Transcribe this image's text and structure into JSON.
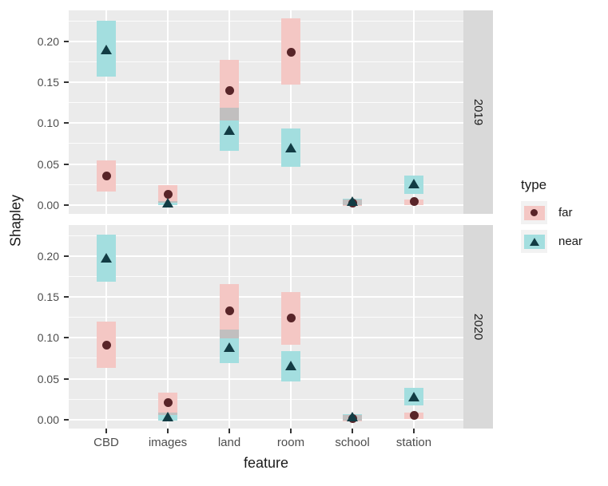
{
  "chart_data": {
    "type": "crossbar",
    "title": "",
    "xlabel": "feature",
    "ylabel": "Shapley",
    "categories": [
      "CBD",
      "images",
      "land",
      "room",
      "school",
      "station"
    ],
    "ylim": [
      -0.011,
      0.238
    ],
    "yticks": [
      0.0,
      0.05,
      0.1,
      0.15,
      0.2
    ],
    "ytick_labels": [
      "0.00",
      "0.05",
      "0.10",
      "0.15",
      "0.20"
    ],
    "yticks_minor": [
      0.025,
      0.075,
      0.125,
      0.175,
      0.225
    ],
    "grid": "white major and minor horizontal lines plus major vertical lines on gray panels",
    "legend": {
      "title": "type",
      "position": "right",
      "entries": [
        {
          "label": "far",
          "shape": "circle"
        },
        {
          "label": "near",
          "shape": "triangle"
        }
      ]
    },
    "facets": [
      {
        "label": "2019",
        "series": [
          {
            "name": "far",
            "shape": "circle",
            "point": [
              0.035,
              0.013,
              0.14,
              0.187,
              0.002,
              0.004
            ],
            "lower": [
              0.016,
              0.003,
              0.103,
              0.147,
              -0.001,
              0.0
            ],
            "upper": [
              0.054,
              0.024,
              0.177,
              0.228,
              0.007,
              0.007
            ]
          },
          {
            "name": "near",
            "shape": "triangle",
            "point": [
              0.19,
              0.003,
              0.092,
              0.07,
              0.005,
              0.026
            ],
            "lower": [
              0.157,
              0.0,
              0.066,
              0.047,
              0.0,
              0.013
            ],
            "upper": [
              0.225,
              0.005,
              0.119,
              0.093,
              0.008,
              0.036
            ]
          }
        ]
      },
      {
        "label": "2020",
        "series": [
          {
            "name": "far",
            "shape": "circle",
            "point": [
              0.091,
              0.021,
              0.133,
              0.124,
              0.001,
              0.005
            ],
            "lower": [
              0.063,
              0.006,
              0.099,
              0.092,
              -0.002,
              0.001
            ],
            "upper": [
              0.12,
              0.033,
              0.166,
              0.156,
              0.006,
              0.009
            ]
          },
          {
            "name": "near",
            "shape": "triangle",
            "point": [
              0.198,
              0.004,
              0.089,
              0.066,
              0.004,
              0.028
            ],
            "lower": [
              0.169,
              -0.001,
              0.069,
              0.047,
              -0.001,
              0.017
            ],
            "upper": [
              0.226,
              0.009,
              0.11,
              0.084,
              0.007,
              0.039
            ]
          }
        ]
      }
    ],
    "colors": {
      "far_fill": "#f4c7c4",
      "near_fill": "#a3dedf",
      "overlap_fill": "#c1bfbf",
      "far_point": "#582428",
      "near_point": "#123c44",
      "panel_bg": "#ebebeb",
      "strip_bg": "#d9d9d9",
      "grid": "#ffffff",
      "axis_text": "#4d4d4d",
      "tick_mark": "#333333",
      "title_text": "#1a1a1a",
      "legend_key_bg": "#f2f2f2"
    }
  }
}
